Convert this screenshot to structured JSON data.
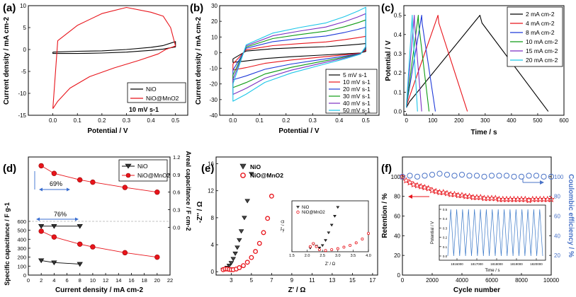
{
  "figure": {
    "line_colors": [
      "#000000",
      "#e8141b",
      "#1f3ad9",
      "#0f9b14",
      "#7b2fc2",
      "#8a9a1a",
      "#1cc6e8"
    ],
    "blue_axis_color": "#4a73c7"
  },
  "chart_data": [
    {
      "panel": "(a)",
      "type": "line",
      "xlabel": "Potential / V",
      "ylabel": "Current density / mA cm-2",
      "xlim": [
        -0.1,
        0.55
      ],
      "ylim": [
        -15,
        10
      ],
      "xticks": [
        "0.0",
        "0.1",
        "0.2",
        "0.3",
        "0.4",
        "0.5"
      ],
      "yticks": [
        "-15",
        "-10",
        "-5",
        "0",
        "5",
        "10"
      ],
      "annotation": "10 mV s-1",
      "series": [
        {
          "name": "NiO",
          "color": "#000000",
          "x": [
            0.0,
            0.1,
            0.2,
            0.3,
            0.4,
            0.45,
            0.5,
            0.5,
            0.45,
            0.4,
            0.3,
            0.2,
            0.1,
            0.0,
            0.0
          ],
          "y": [
            -0.6,
            -0.4,
            -0.3,
            0.0,
            0.5,
            0.9,
            1.8,
            0.6,
            0.1,
            -0.2,
            -0.6,
            -0.8,
            -0.9,
            -0.9,
            -0.6
          ]
        },
        {
          "name": "NiO@MnO2",
          "color": "#e8141b",
          "x": [
            0.0,
            0.02,
            0.1,
            0.2,
            0.3,
            0.4,
            0.45,
            0.48,
            0.5,
            0.46,
            0.43,
            0.35,
            0.25,
            0.15,
            0.07,
            0.02,
            0.0
          ],
          "y": [
            -13.5,
            2.0,
            5.5,
            8.2,
            9.6,
            8.5,
            7.6,
            5.0,
            0.8,
            0.0,
            -1.0,
            -2.5,
            -4.2,
            -6.2,
            -8.8,
            -11.8,
            -13.5
          ]
        }
      ]
    },
    {
      "panel": "(b)",
      "type": "line",
      "xlabel": "Potential / V",
      "ylabel": "Current density / mA cm-2",
      "xlim": [
        -0.05,
        0.55
      ],
      "ylim": [
        -40,
        30
      ],
      "xticks": [
        "0.0",
        "0.1",
        "0.2",
        "0.3",
        "0.4",
        "0.5"
      ],
      "yticks": [
        "-40",
        "-30",
        "-20",
        "-10",
        "0",
        "10",
        "20",
        "30"
      ],
      "series": [
        {
          "name": "5 mV s-1",
          "color": "#000000",
          "k": 1.0
        },
        {
          "name": "10 mV s-1",
          "color": "#e8141b",
          "k": 1.8
        },
        {
          "name": "20 mV s-1",
          "color": "#1f3ad9",
          "k": 2.8
        },
        {
          "name": "30 mV s-1",
          "color": "#0f9b14",
          "k": 3.6
        },
        {
          "name": "40 mV s-1",
          "color": "#7b2fc2",
          "k": 4.3
        },
        {
          "name": "50 mV s-1",
          "color": "#1cc6e8",
          "k": 5.0
        }
      ]
    },
    {
      "panel": "(c)",
      "type": "line",
      "xlabel": "Time / s",
      "ylabel": "Potential / V",
      "xlim": [
        -10,
        600
      ],
      "ylim": [
        -0.02,
        0.55
      ],
      "xticks": [
        "0",
        "100",
        "200",
        "300",
        "400",
        "500",
        "600"
      ],
      "yticks": [
        "0.0",
        "0.1",
        "0.2",
        "0.3",
        "0.4",
        "0.5"
      ],
      "series": [
        {
          "name": "2 mA cm-2",
          "color": "#000000",
          "peak": 280,
          "end": 540
        },
        {
          "name": "4 mA cm-2",
          "color": "#e8141b",
          "peak": 120,
          "end": 232
        },
        {
          "name": "8 mA cm-2",
          "color": "#1f3ad9",
          "peak": 58,
          "end": 110
        },
        {
          "name": "10 mA cm-2",
          "color": "#0f9b14",
          "peak": 45,
          "end": 86
        },
        {
          "name": "15 mA cm-2",
          "color": "#7b2fc2",
          "peak": 30,
          "end": 58
        },
        {
          "name": "20 mA cm-2",
          "color": "#1cc6e8",
          "peak": 22,
          "end": 42
        }
      ]
    },
    {
      "panel": "(d)",
      "type": "scatter",
      "xlabel": "Current density / mA cm-2",
      "ylabel": "Specific capacitance / F g-1",
      "ylabel_right": "Areal capacitance / F cm-2",
      "xlim": [
        0,
        22
      ],
      "ylim_left": [
        0,
        600
      ],
      "ylim_right": [
        -0.2,
        1.2
      ],
      "xticks": [
        "0",
        "2",
        "4",
        "6",
        "8",
        "10",
        "12",
        "14",
        "16",
        "18",
        "20",
        "22"
      ],
      "yticks_left": [
        "0",
        "100",
        "200",
        "300",
        "400",
        "500",
        "600"
      ],
      "yticks_right": [
        "0.0",
        "0.3",
        "0.6",
        "0.9",
        "1.2"
      ],
      "annotations": [
        "69%",
        "76%"
      ],
      "series": [
        {
          "name": "NiO",
          "axis": "left",
          "marker": "triangle",
          "color": "#000000",
          "x": [
            2,
            4,
            8
          ],
          "y": [
            163,
            140,
            123
          ]
        },
        {
          "name": "NiO@MnO2",
          "axis": "left",
          "marker": "circle",
          "color": "#e8141b",
          "x": [
            2,
            4,
            8,
            10,
            15,
            20
          ],
          "y": [
            490,
            425,
            345,
            315,
            250,
            200
          ]
        },
        {
          "name": "NiO",
          "axis": "right",
          "marker": "triangle",
          "color": "#000000",
          "x": [
            2,
            4,
            8
          ],
          "y": [
            0.02,
            0.02,
            0.02
          ]
        },
        {
          "name": "NiO@MnO2",
          "axis": "right",
          "marker": "circle",
          "color": "#e8141b",
          "x": [
            2,
            4,
            8,
            10,
            15,
            20
          ],
          "y": [
            1.05,
            0.92,
            0.81,
            0.77,
            0.68,
            0.6
          ]
        }
      ]
    },
    {
      "panel": "(e)",
      "type": "scatter",
      "xlabel": "Z' / Ω",
      "ylabel": "-Z'' / Ω",
      "xlim": [
        1.5,
        17.5
      ],
      "ylim": [
        -0.5,
        17
      ],
      "xticks": [
        "3",
        "5",
        "7",
        "9",
        "11",
        "13",
        "15",
        "17"
      ],
      "yticks": [
        "0",
        "4",
        "8",
        "12",
        "16"
      ],
      "series": [
        {
          "name": "NiO",
          "marker": "triangle",
          "color": "#000000",
          "x": [
            2.2,
            2.4,
            2.6,
            2.8,
            3.0,
            3.2,
            3.4,
            3.6,
            3.8,
            4.0,
            4.3,
            4.6,
            5.0
          ],
          "y": [
            0.3,
            0.4,
            0.6,
            0.9,
            1.3,
            1.9,
            2.7,
            3.6,
            4.7,
            6.0,
            8.0,
            10.5,
            14.5
          ]
        },
        {
          "name": "NiO@MnO2",
          "marker": "circle",
          "color": "#e8141b",
          "x": [
            2.2,
            2.4,
            2.6,
            2.8,
            3.0,
            3.2,
            3.5,
            3.8,
            4.2,
            4.6,
            5.0,
            5.4,
            5.8,
            6.2,
            6.6,
            7.0
          ],
          "y": [
            0.3,
            0.4,
            0.4,
            0.35,
            0.3,
            0.3,
            0.4,
            0.6,
            0.9,
            1.4,
            2.1,
            3.0,
            4.2,
            5.8,
            7.9,
            11.2
          ]
        }
      ],
      "inset": {
        "xlabel": "Z' / Ω",
        "ylabel": "-Z'' / Ω",
        "xlim": [
          1.5,
          4.0
        ],
        "ylim": [
          0,
          2.0
        ],
        "xticks": [
          "1.5",
          "2.0",
          "2.5",
          "3.0",
          "3.5",
          "4.0"
        ],
        "series": [
          {
            "name": "NiO",
            "x": [
              2.1,
              2.2,
              2.3,
              2.4,
              2.5,
              2.6,
              2.7,
              2.8,
              2.9,
              3.0
            ],
            "y": [
              0.15,
              0.3,
              0.22,
              0.15,
              0.25,
              0.45,
              0.75,
              1.05,
              1.4,
              1.75
            ]
          },
          {
            "name": "NiO@MnO2",
            "x": [
              2.1,
              2.2,
              2.3,
              2.4,
              2.6,
              2.8,
              3.0,
              3.2,
              3.4,
              3.6,
              3.8,
              4.0
            ],
            "y": [
              0.2,
              0.32,
              0.2,
              0.08,
              0.05,
              0.08,
              0.12,
              0.18,
              0.25,
              0.35,
              0.5,
              0.72
            ]
          }
        ]
      }
    },
    {
      "panel": "(f)",
      "type": "scatter",
      "xlabel": "Cycle number",
      "ylabel": "Retention / %",
      "ylabel_right": "Coulombic efficiency / %",
      "xlim": [
        0,
        10000
      ],
      "ylim_left": [
        0,
        120
      ],
      "ylim_right": [
        0,
        120
      ],
      "xticks": [
        "0",
        "2000",
        "4000",
        "6000",
        "8000",
        "10000"
      ],
      "yticks_left": [
        "0",
        "20",
        "40",
        "60",
        "80",
        "100"
      ],
      "yticks_right": [
        "20",
        "40",
        "60",
        "80",
        "100"
      ],
      "series": [
        {
          "name": "Retention",
          "axis": "left",
          "marker": "star",
          "color": "#e8141b",
          "x": [
            0,
            250,
            500,
            750,
            1000,
            1250,
            1500,
            1750,
            2000,
            2250,
            2500,
            2750,
            3000,
            3250,
            3500,
            3750,
            4000,
            4250,
            4500,
            4750,
            5000,
            5250,
            5500,
            5750,
            6000,
            6250,
            6500,
            6750,
            7000,
            7250,
            7500,
            7750,
            8000,
            8250,
            8500,
            8750,
            9000,
            9250,
            9500,
            9750,
            10000
          ],
          "y": [
            100,
            96,
            94,
            92,
            91,
            90,
            89,
            88,
            86,
            85,
            84,
            84,
            83,
            82,
            82,
            81,
            81,
            80,
            80,
            79,
            79,
            79,
            78,
            78,
            78,
            78,
            77,
            77,
            77,
            77,
            77,
            77,
            77,
            77,
            76,
            77,
            77,
            77,
            77,
            77,
            77
          ]
        },
        {
          "name": "Coulombic efficiency",
          "axis": "right",
          "marker": "circle-open",
          "color": "#4a73c7",
          "x": [
            0,
            500,
            1000,
            1500,
            2000,
            2500,
            3000,
            3500,
            4000,
            4500,
            5000,
            5500,
            6000,
            6500,
            7000,
            7500,
            8000,
            8500,
            9000,
            9500,
            10000
          ],
          "y": [
            100,
            101,
            100,
            101,
            102,
            103,
            102,
            101,
            102,
            101,
            101,
            100,
            101,
            101,
            101,
            100,
            100,
            101,
            101,
            100,
            100
          ]
        }
      ],
      "inset": {
        "xlabel": "Time / s",
        "ylabel": "Potential / V",
        "xticks": [
          "1816000",
          "1817000",
          "1818000",
          "1819000",
          "1820000"
        ],
        "yticks": [
          "0.0",
          "0.1",
          "0.2",
          "0.3",
          "0.4",
          "0.5"
        ],
        "cycles": 16
      }
    }
  ]
}
